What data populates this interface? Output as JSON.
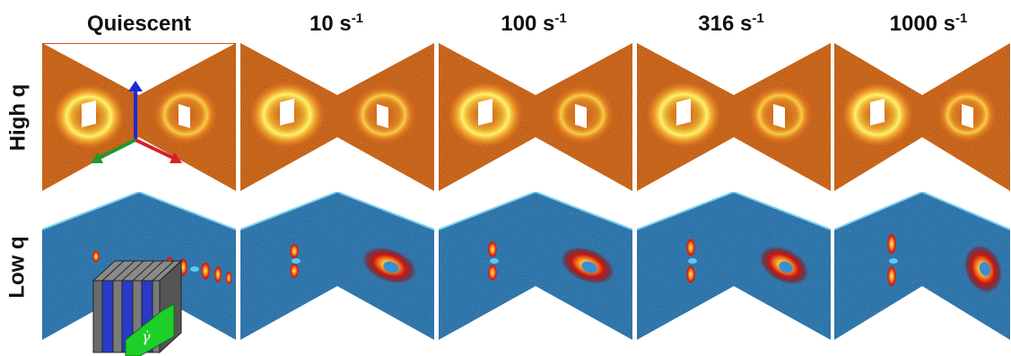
{
  "columns": [
    {
      "label": "Quiescent",
      "unit": ""
    },
    {
      "label": "10 s",
      "unit": "-1"
    },
    {
      "label": "100 s",
      "unit": "-1"
    },
    {
      "label": "316 s",
      "unit": "-1"
    },
    {
      "label": "1000 s",
      "unit": "-1"
    }
  ],
  "rows": [
    "High q",
    "Low q"
  ],
  "inset_symbol": "γ̇",
  "colors": {
    "high_q_bg": "#f07a22",
    "high_q_ring": "#ffe84a",
    "low_q_bg": "#3a8fcf",
    "low_q_peak": "#d11a10",
    "axis_up": "#1a2ad8",
    "axis_left": "#1b9a2a",
    "axis_right": "#d8202a"
  }
}
